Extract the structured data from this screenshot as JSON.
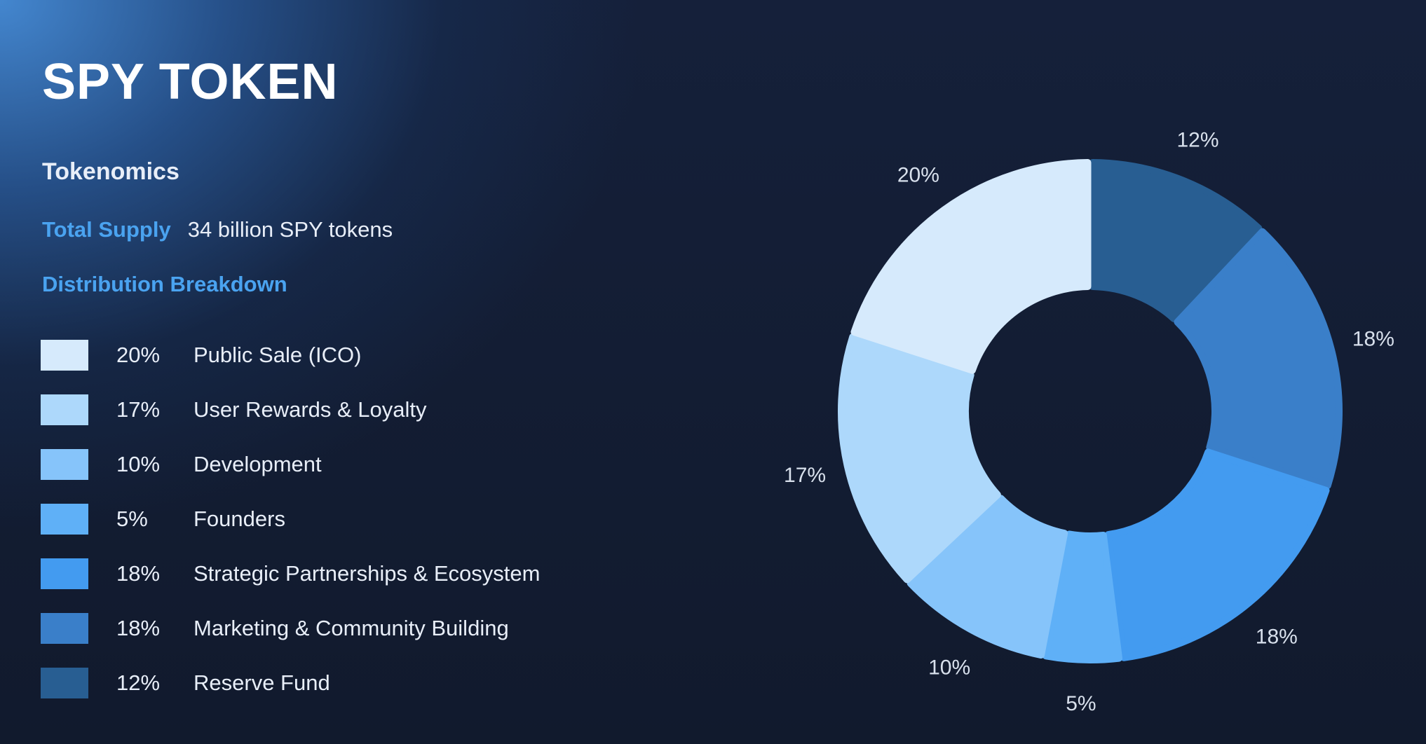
{
  "title": "SPY TOKEN",
  "subtitle": "Tokenomics",
  "supply": {
    "label": "Total Supply",
    "value": "34 billion SPY tokens"
  },
  "breakdown_label": "Distribution Breakdown",
  "legend": [
    {
      "pct": "20%",
      "name": "Public Sale (ICO)",
      "color": "#d6eafc"
    },
    {
      "pct": "17%",
      "name": "User Rewards & Loyalty",
      "color": "#add8fb"
    },
    {
      "pct": "10%",
      "name": "Development",
      "color": "#86c4fa"
    },
    {
      "pct": "5%",
      "name": "Founders",
      "color": "#5fb0f7"
    },
    {
      "pct": "18%",
      "name": "Strategic Partnerships & Ecosystem",
      "color": "#439bf0"
    },
    {
      "pct": "18%",
      "name": "Marketing & Community Building",
      "color": "#3a7fc9"
    },
    {
      "pct": "12%",
      "name": "Reserve Fund",
      "color": "#285e92"
    }
  ],
  "chart_data": {
    "type": "pie",
    "title": "",
    "categories": [
      "Reserve Fund",
      "Marketing & Community Building",
      "Strategic Partnerships & Ecosystem",
      "Founders",
      "Development",
      "User Rewards & Loyalty",
      "Public Sale (ICO)"
    ],
    "values": [
      12,
      18,
      18,
      5,
      10,
      17,
      20
    ],
    "labels": [
      "12%",
      "18%",
      "18%",
      "5%",
      "10%",
      "17%",
      "20%"
    ],
    "colors": [
      "#285e92",
      "#3a7fc9",
      "#439bf0",
      "#5fb0f7",
      "#86c4fa",
      "#add8fb",
      "#d6eafc"
    ],
    "donut": true
  }
}
